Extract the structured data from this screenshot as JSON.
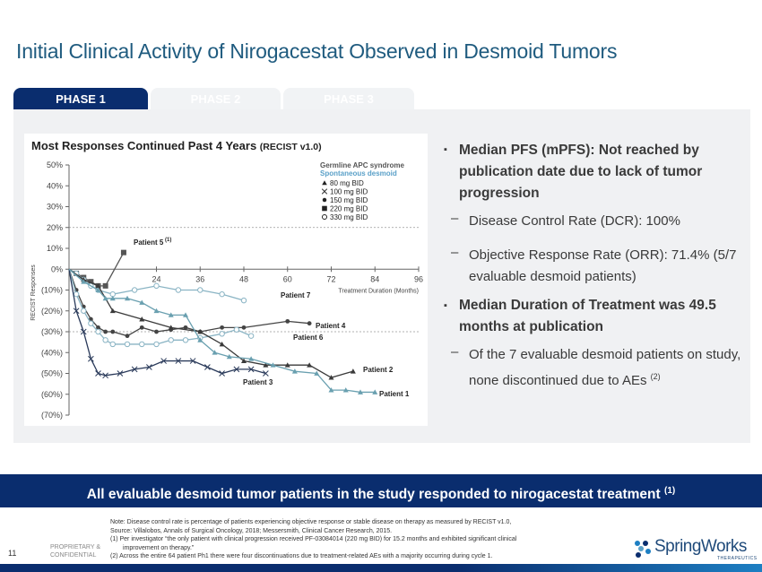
{
  "slide": {
    "title": "Initial Clinical Activity of Nirogacestat Observed in Desmoid Tumors",
    "page_number": "11"
  },
  "tabs": [
    {
      "label": "PHASE 1",
      "active": true
    },
    {
      "label": "PHASE 2",
      "active": false
    },
    {
      "label": "PHASE 3",
      "active": false
    }
  ],
  "chart": {
    "title": "Most Responses Continued Past 4 Years",
    "title_suffix": "(RECIST v1.0)"
  },
  "chart_data": {
    "type": "line",
    "title": "Most Responses Continued Past 4 Years (RECIST v1.0)",
    "xlabel": "Treatment Duration (Months)",
    "ylabel": "RECIST Responses",
    "xlim": [
      0,
      96
    ],
    "ylim": [
      -70,
      50
    ],
    "x_ticks": [
      24,
      36,
      48,
      60,
      72,
      84,
      96
    ],
    "y_ticks": [
      50,
      40,
      30,
      20,
      10,
      0,
      -10,
      -20,
      -30,
      -40,
      -50,
      -60,
      -70
    ],
    "y_tick_labels": [
      "50%",
      "40%",
      "30%",
      "20%",
      "10%",
      "0%",
      "(10%)",
      "(20%)",
      "(30%)",
      "(40%)",
      "(50%)",
      "(60%)",
      "(70%)"
    ],
    "reference_lines": [
      20,
      -30
    ],
    "legend": {
      "placement": "top-right",
      "heading": "Germline APC syndrome",
      "subheading": "Spontaneous desmoid",
      "items": [
        {
          "marker": "triangle",
          "label": "80 mg BID"
        },
        {
          "marker": "x",
          "label": "100 mg BID"
        },
        {
          "marker": "dot",
          "label": "150 mg BID"
        },
        {
          "marker": "square",
          "label": "220 mg BID"
        },
        {
          "marker": "circle",
          "label": "330 mg BID"
        }
      ]
    },
    "series": [
      {
        "name": "Patient 5",
        "name_sup": "(1)",
        "marker": "square",
        "color": "#555555",
        "x": [
          0,
          2,
          4,
          6,
          8,
          10,
          15
        ],
        "y": [
          0,
          -2,
          -4,
          -6,
          -8,
          -8,
          8
        ]
      },
      {
        "name": "Patient 7",
        "marker": "circle",
        "color": "#8ab4c4",
        "x": [
          0,
          2,
          4,
          6,
          8,
          12,
          18,
          24,
          30,
          36,
          42,
          48
        ],
        "y": [
          0,
          -2,
          -5,
          -8,
          -10,
          -12,
          -10,
          -8,
          -10,
          -10,
          -12,
          -15
        ]
      },
      {
        "name": "Patient 4",
        "marker": "dot",
        "color": "#444444",
        "x": [
          0,
          2,
          4,
          6,
          8,
          10,
          12,
          16,
          20,
          24,
          28,
          32,
          36,
          42,
          48,
          60,
          66
        ],
        "y": [
          0,
          -10,
          -18,
          -24,
          -28,
          -30,
          -30,
          -32,
          -28,
          -30,
          -29,
          -28,
          -30,
          -28,
          -28,
          -25,
          -26
        ]
      },
      {
        "name": "Patient 6",
        "marker": "circle",
        "color": "#8ab4c4",
        "x": [
          0,
          2,
          4,
          6,
          8,
          10,
          12,
          16,
          20,
          24,
          28,
          32,
          36,
          42,
          46,
          50
        ],
        "y": [
          0,
          -12,
          -20,
          -26,
          -30,
          -34,
          -36,
          -36,
          -36,
          -36,
          -34,
          -34,
          -33,
          -31,
          -29,
          -32
        ]
      },
      {
        "name": "Patient 3",
        "marker": "x",
        "color": "#2a3a5a",
        "x": [
          0,
          2,
          4,
          6,
          8,
          10,
          14,
          18,
          22,
          26,
          30,
          34,
          38,
          42,
          46,
          50,
          54
        ],
        "y": [
          0,
          -20,
          -30,
          -43,
          -50,
          -51,
          -50,
          -48,
          -47,
          -44,
          -44,
          -44,
          -47,
          -50,
          -48,
          -48,
          -50
        ]
      },
      {
        "name": "Patient 2",
        "marker": "triangle",
        "color": "#3a3a3a",
        "x": [
          0,
          4,
          8,
          12,
          20,
          28,
          36,
          42,
          48,
          54,
          60,
          66,
          72,
          78
        ],
        "y": [
          0,
          -5,
          -8,
          -20,
          -24,
          -28,
          -30,
          -36,
          -44,
          -46,
          -46,
          -46,
          -52,
          -49
        ]
      },
      {
        "name": "Patient 1",
        "marker": "triangle",
        "color": "#6aa0b0",
        "x": [
          0,
          4,
          8,
          10,
          12,
          16,
          20,
          24,
          28,
          32,
          36,
          40,
          44,
          50,
          56,
          62,
          68,
          72,
          76,
          80,
          84
        ],
        "y": [
          0,
          -6,
          -10,
          -14,
          -14,
          -14,
          -16,
          -20,
          -22,
          -22,
          -34,
          -40,
          -42,
          -43,
          -46,
          -49,
          -50,
          -58,
          -58,
          -59,
          -59
        ]
      }
    ]
  },
  "bullets": [
    {
      "type": "main",
      "text": "Median PFS (mPFS): Not reached by publication date due to lack of tumor progression"
    },
    {
      "type": "sub",
      "text": "Disease Control Rate (DCR): 100%"
    },
    {
      "type": "sub",
      "text": "Objective Response Rate (ORR): 71.4% (5/7 evaluable desmoid patients)"
    },
    {
      "type": "main",
      "text": "Median Duration of Treatment was 49.5 months at publication"
    },
    {
      "type": "sub",
      "text": "Of the 7 evaluable desmoid patients on study, none discontinued due to AEs",
      "sup": "(2)"
    }
  ],
  "banner": {
    "text": "All evaluable desmoid tumor patients in the study responded to nirogacestat treatment",
    "sup": "(1)"
  },
  "footer": {
    "proprietary": "PROPRIETARY &",
    "confidential": "CONFIDENTIAL",
    "note_line_1": "Note: Disease control rate is percentage of patients experiencing objective response or stable disease on therapy as measured by RECIST v1.0,",
    "note_line_2": "Source: Villalobos, Annals of Surgical Oncology, 2018; Messersmith, Clinical Cancer Research, 2015.",
    "note_line_3": "(1)   Per investigator “the only patient with clinical progression received PF-03084014 (220 mg BID) for 15.2 months and exhibited significant clinical",
    "note_line_4": "improvement on therapy.”",
    "note_line_5": "(2)   Across the entire 64 patient Ph1 there were four discontinuations due to treatment-related AEs with a majority occurring during cycle 1.",
    "logo_text": "SpringWorks",
    "logo_sub": "THERAPEUTICS"
  },
  "colors": {
    "brand_navy": "#0a2d6e",
    "title_blue": "#1f5b7f",
    "panel_gray": "#f0f1f3",
    "legend_blue": "#5aa0c8"
  }
}
